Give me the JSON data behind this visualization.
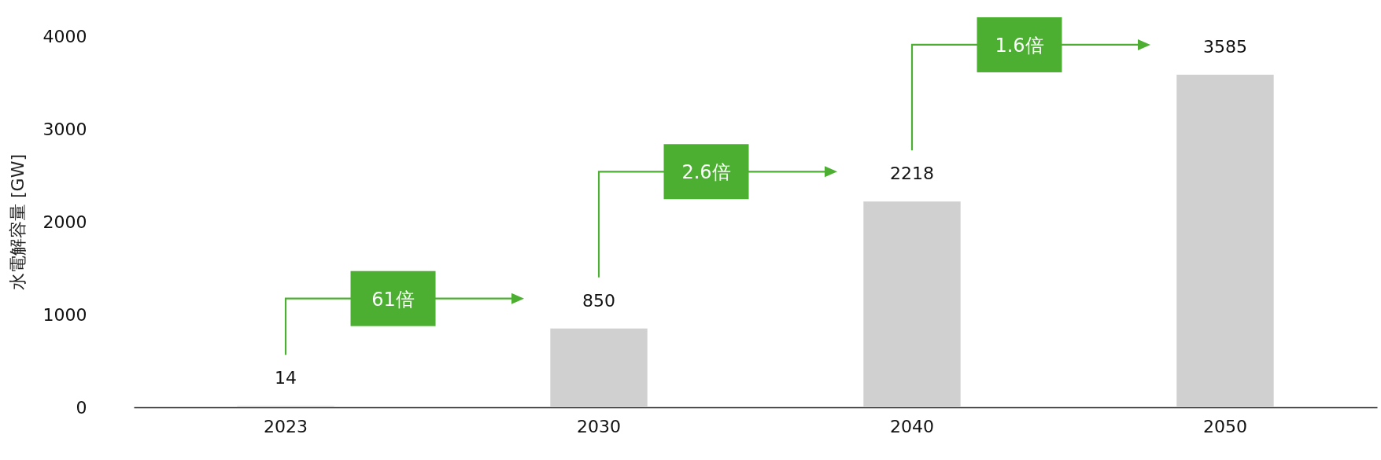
{
  "chart_data": {
    "type": "bar",
    "ylabel": "水電解容量 [GW]",
    "categories": [
      "2023",
      "2030",
      "2040",
      "2050"
    ],
    "values": [
      14,
      850,
      2218,
      3585
    ],
    "color": "#d0d0d0",
    "ylim": [
      0,
      4000
    ],
    "yticks": [
      0,
      1000,
      2000,
      3000,
      4000
    ],
    "data_labels": true,
    "grid": false,
    "annotations": [
      "61倍",
      "2.6倍",
      "1.6倍"
    ]
  }
}
